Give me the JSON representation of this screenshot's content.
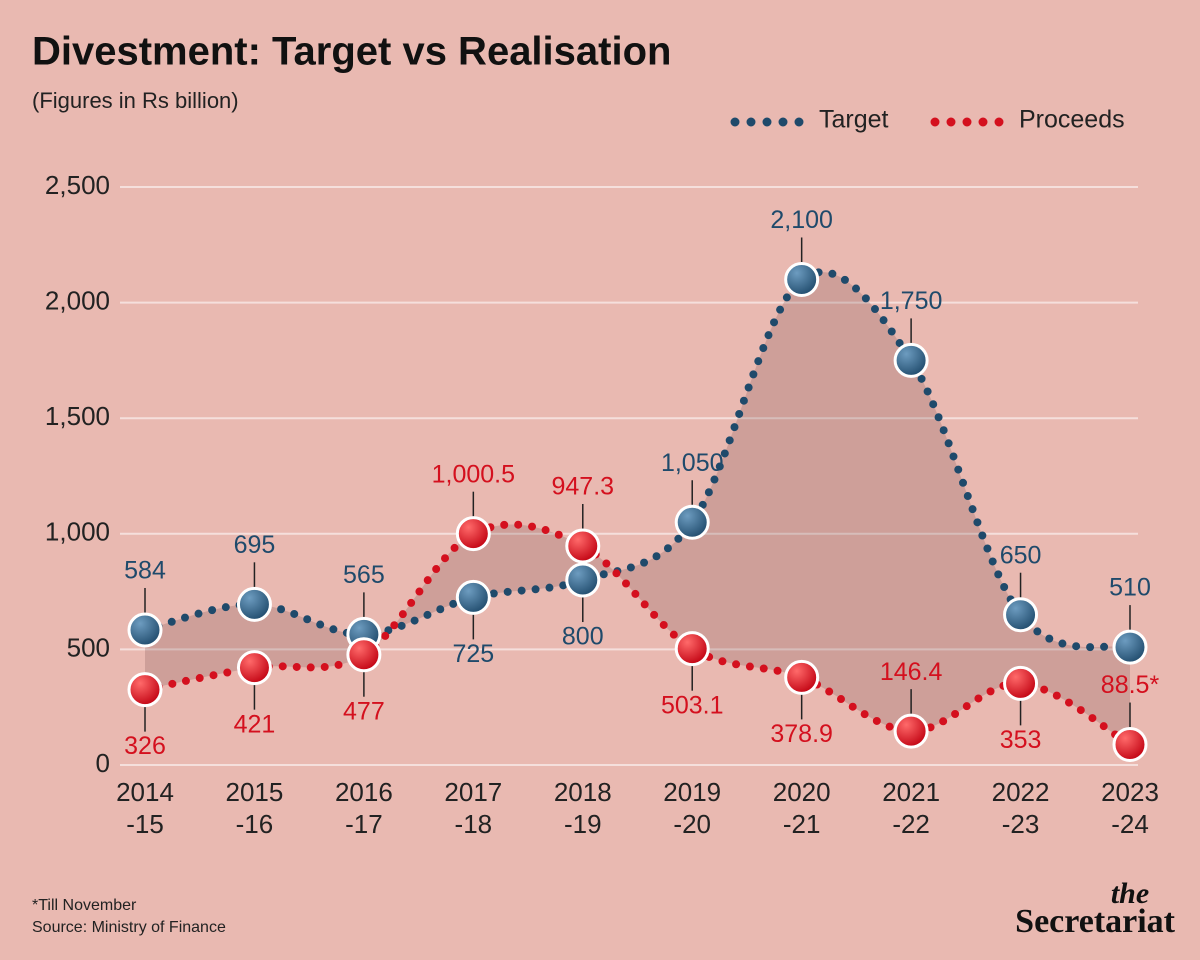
{
  "chart_data": {
    "type": "line",
    "title": "Divestment: Target vs Realisation",
    "subtitle": "(Figures in Rs billion)",
    "categories": [
      "2014\n-15",
      "2015\n-16",
      "2016\n-17",
      "2017\n-18",
      "2018\n-19",
      "2019\n-20",
      "2020\n-21",
      "2021\n-22",
      "2022\n-23",
      "2023\n-24"
    ],
    "series": [
      {
        "name": "Target",
        "color": "#1f4a6b",
        "values": [
          584,
          695,
          565,
          725,
          800,
          1050,
          2100,
          1750,
          650,
          510
        ],
        "value_labels": [
          "584",
          "695",
          "565",
          "725",
          "800",
          "1,050",
          "2,100",
          "1,750",
          "650",
          "510"
        ]
      },
      {
        "name": "Proceeds",
        "color": "#d4101e",
        "values": [
          326,
          421,
          477,
          1000.5,
          947.3,
          503.1,
          378.9,
          146.4,
          353,
          88.5
        ],
        "value_labels": [
          "326",
          "421",
          "477",
          "1,000.5",
          "947.3",
          "503.1",
          "378.9",
          "146.4",
          "353",
          "88.5*"
        ]
      }
    ],
    "ylim": [
      0,
      2500
    ],
    "yticks": [
      0,
      500,
      {
        "value": 1000,
        "label": "1,000"
      },
      {
        "value": 1500,
        "label": "1,500"
      },
      {
        "value": 2000,
        "label": "2,000"
      },
      {
        "value": 2500,
        "label": "2,500"
      }
    ],
    "grid": true,
    "legend": "top-right",
    "footnote": "*Till November",
    "source": "Source: Ministry of Finance",
    "brand_top": "the",
    "brand": "Secretariat"
  }
}
